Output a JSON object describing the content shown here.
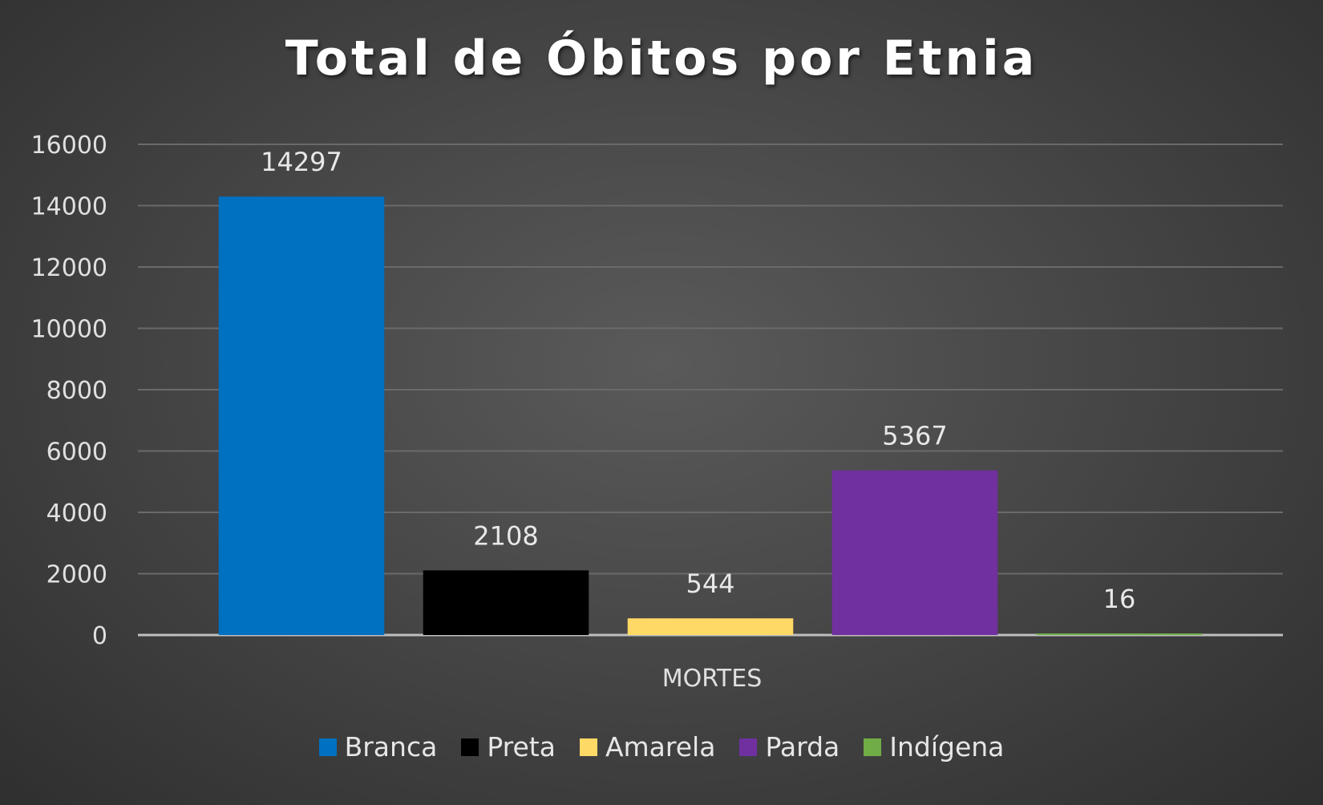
{
  "chart_data": {
    "type": "bar",
    "title": "Total de Óbitos por Etnia",
    "categories": [
      "MORTES"
    ],
    "series": [
      {
        "name": "Branca",
        "values": [
          14297
        ],
        "color": "#0070c0"
      },
      {
        "name": "Preta",
        "values": [
          2108
        ],
        "color": "#000000"
      },
      {
        "name": "Amarela",
        "values": [
          544
        ],
        "color": "#ffd966"
      },
      {
        "name": "Parda",
        "values": [
          5367
        ],
        "color": "#7030a0"
      },
      {
        "name": "Indígena",
        "values": [
          16
        ],
        "color": "#70ad47"
      }
    ],
    "ylim": [
      0,
      16000
    ],
    "yticks": [
      "0",
      "2000",
      "4000",
      "6000",
      "8000",
      "10000",
      "12000",
      "14000",
      "16000"
    ],
    "grid": true,
    "legend": "bottom"
  }
}
